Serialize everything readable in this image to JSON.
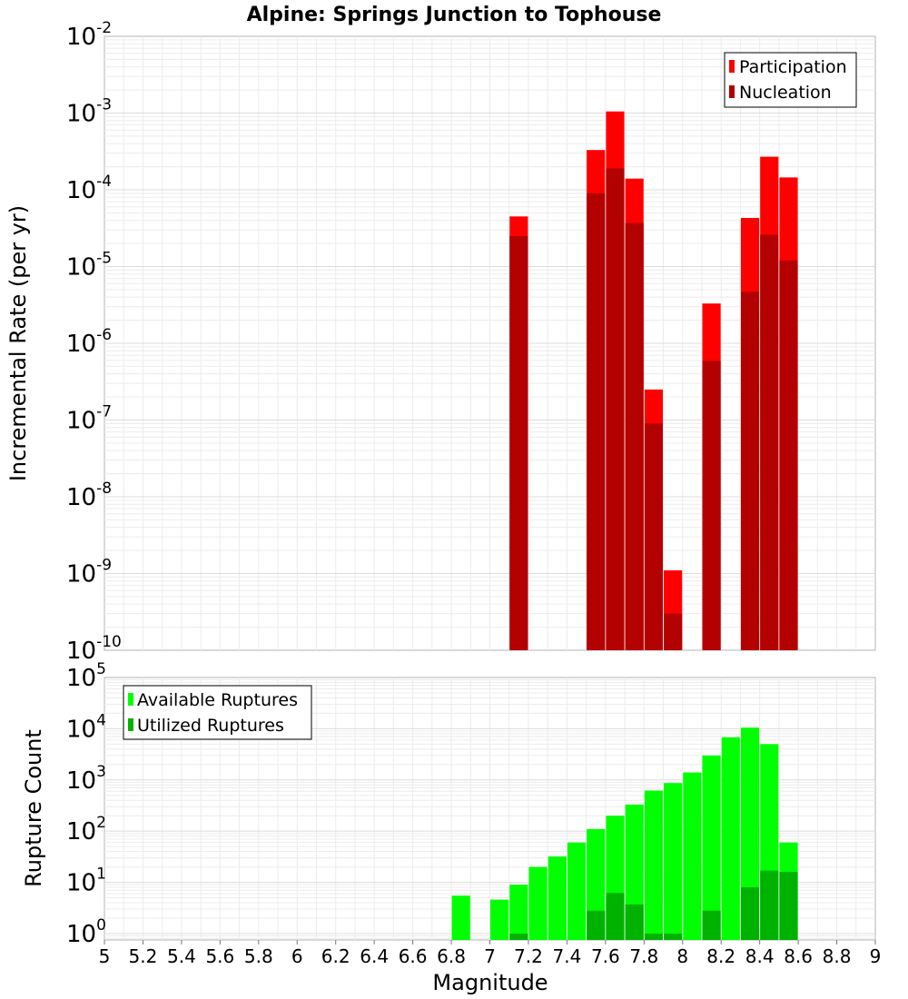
{
  "title": "Alpine: Springs Junction to Tophouse",
  "chart_data": [
    {
      "type": "bar",
      "ylabel": "Incremental Rate (per yr)",
      "xlim": [
        5,
        9
      ],
      "ylim": [
        1e-10,
        0.01
      ],
      "yscale": "log",
      "ytick_exponents": [
        "-2",
        "-3",
        "-4",
        "-5",
        "-6",
        "-7",
        "-8",
        "-9",
        "-10"
      ],
      "ytick_base": "10",
      "grid": true,
      "legend": "top-right",
      "bar_width": 0.095,
      "series": [
        {
          "name": "Participation",
          "color": "#ff0000",
          "x": [
            7.15,
            7.55,
            7.65,
            7.75,
            7.85,
            7.95,
            8.15,
            8.35,
            8.45,
            8.55
          ],
          "values": [
            4.5e-05,
            0.00033,
            0.00105,
            0.00014,
            2.5e-07,
            1.1e-09,
            3.3e-06,
            4.3e-05,
            0.00027,
            0.000145
          ]
        },
        {
          "name": "Nucleation",
          "color": "#b30000",
          "x": [
            7.15,
            7.55,
            7.65,
            7.75,
            7.85,
            7.95,
            8.15,
            8.35,
            8.45,
            8.55
          ],
          "values": [
            2.5e-05,
            9e-05,
            0.00019,
            3.7e-05,
            9e-08,
            3e-10,
            5.9e-07,
            4.7e-06,
            2.6e-05,
            1.2e-05
          ]
        }
      ]
    },
    {
      "type": "bar",
      "ylabel": "Rupture Count",
      "xlabel": "Magnitude",
      "xlim": [
        5,
        9
      ],
      "ylim": [
        0.75,
        100000
      ],
      "yscale": "log",
      "ytick_exponents": [
        "5",
        "4",
        "3",
        "2",
        "1",
        "0"
      ],
      "ytick_base": "10",
      "xticks": [
        "5",
        "5.2",
        "5.4",
        "5.6",
        "5.8",
        "6",
        "6.2",
        "6.4",
        "6.6",
        "6.8",
        "7",
        "7.2",
        "7.4",
        "7.6",
        "7.8",
        "8",
        "8.2",
        "8.4",
        "8.6",
        "8.8",
        "9"
      ],
      "grid": true,
      "legend": "top-left",
      "bar_width": 0.095,
      "series": [
        {
          "name": "Available Ruptures",
          "color": "#00ff00",
          "x": [
            6.85,
            7.05,
            7.15,
            7.25,
            7.35,
            7.45,
            7.55,
            7.65,
            7.75,
            7.85,
            7.95,
            8.05,
            8.15,
            8.25,
            8.35,
            8.45,
            8.55
          ],
          "values": [
            5.5,
            4.6,
            9,
            20,
            32,
            60,
            110,
            200,
            330,
            620,
            870,
            1400,
            3000,
            6800,
            10500,
            5000,
            60
          ]
        },
        {
          "name": "Utilized Ruptures",
          "color": "#00b200",
          "x": [
            7.15,
            7.55,
            7.65,
            7.75,
            7.85,
            7.95,
            8.15,
            8.35,
            8.45,
            8.55
          ],
          "values": [
            1,
            2.8,
            6.2,
            3.7,
            1,
            1,
            2.8,
            8,
            17,
            16
          ]
        }
      ]
    }
  ]
}
